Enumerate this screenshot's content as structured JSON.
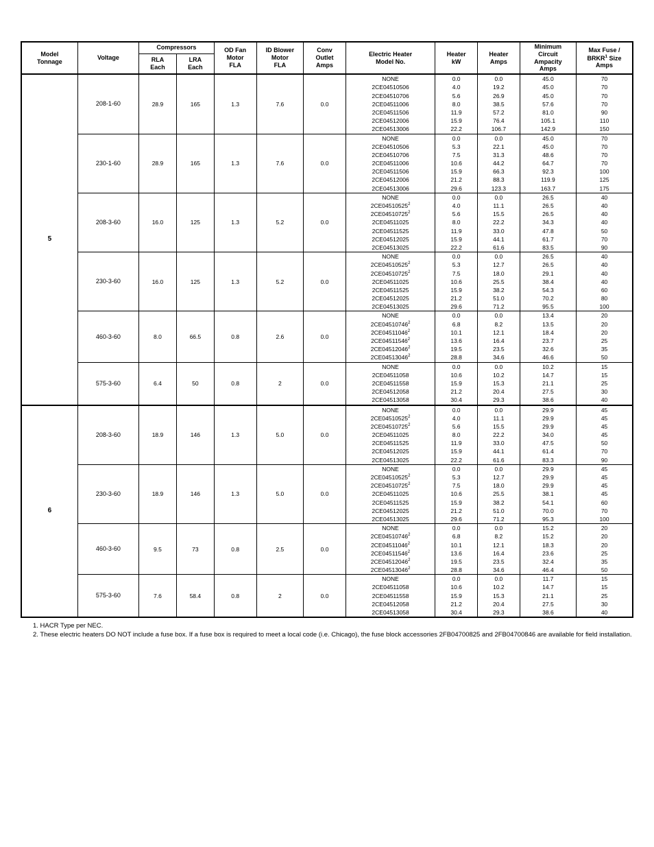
{
  "headers": {
    "tonnage": "Model Tonnage",
    "voltage": "Voltage",
    "compressors": "Compressors",
    "rla": "RLA Each",
    "lra": "LRA Each",
    "odfan": "OD Fan Motor FLA",
    "idblower": "ID Blower Motor FLA",
    "conv": "Conv Outlet Amps",
    "eh": "Electric Heater Model No.",
    "kw": "Heater kW",
    "hamps": "Heater Amps",
    "mca": "Minimum Circuit Ampacity Amps",
    "maxfuse": "Max Fuse / BRKR",
    "maxfuse_sup": "1",
    "maxfuse_suffix": " Size Amps"
  },
  "tonnages": [
    {
      "label": "5",
      "groups": [
        {
          "voltage": "208-1-60",
          "rla": "28.9",
          "lra": "165",
          "odfan": "1.3",
          "idblower": "7.6",
          "conv": "0.0",
          "rows": [
            {
              "m": "NONE",
              "ms": "",
              "kw": "0.0",
              "ha": "0.0",
              "mca": "45.0",
              "mf": "70"
            },
            {
              "m": "2CE04510506",
              "ms": "",
              "kw": "4.0",
              "ha": "19.2",
              "mca": "45.0",
              "mf": "70"
            },
            {
              "m": "2CE04510706",
              "ms": "",
              "kw": "5.6",
              "ha": "26.9",
              "mca": "45.0",
              "mf": "70"
            },
            {
              "m": "2CE04511006",
              "ms": "",
              "kw": "8.0",
              "ha": "38.5",
              "mca": "57.6",
              "mf": "70"
            },
            {
              "m": "2CE04511506",
              "ms": "",
              "kw": "11.9",
              "ha": "57.2",
              "mca": "81.0",
              "mf": "90"
            },
            {
              "m": "2CE04512006",
              "ms": "",
              "kw": "15.9",
              "ha": "76.4",
              "mca": "105.1",
              "mf": "110"
            },
            {
              "m": "2CE04513006",
              "ms": "",
              "kw": "22.2",
              "ha": "106.7",
              "mca": "142.9",
              "mf": "150"
            }
          ]
        },
        {
          "voltage": "230-1-60",
          "rla": "28.9",
          "lra": "165",
          "odfan": "1.3",
          "idblower": "7.6",
          "conv": "0.0",
          "rows": [
            {
              "m": "NONE",
              "ms": "",
              "kw": "0.0",
              "ha": "0.0",
              "mca": "45.0",
              "mf": "70"
            },
            {
              "m": "2CE04510506",
              "ms": "",
              "kw": "5.3",
              "ha": "22.1",
              "mca": "45.0",
              "mf": "70"
            },
            {
              "m": "2CE04510706",
              "ms": "",
              "kw": "7.5",
              "ha": "31.3",
              "mca": "48.6",
              "mf": "70"
            },
            {
              "m": "2CE04511006",
              "ms": "",
              "kw": "10.6",
              "ha": "44.2",
              "mca": "64.7",
              "mf": "70"
            },
            {
              "m": "2CE04511506",
              "ms": "",
              "kw": "15.9",
              "ha": "66.3",
              "mca": "92.3",
              "mf": "100"
            },
            {
              "m": "2CE04512006",
              "ms": "",
              "kw": "21.2",
              "ha": "88.3",
              "mca": "119.9",
              "mf": "125"
            },
            {
              "m": "2CE04513006",
              "ms": "",
              "kw": "29.6",
              "ha": "123.3",
              "mca": "163.7",
              "mf": "175"
            }
          ]
        },
        {
          "voltage": "208-3-60",
          "rla": "16.0",
          "lra": "125",
          "odfan": "1.3",
          "idblower": "5.2",
          "conv": "0.0",
          "rows": [
            {
              "m": "NONE",
              "ms": "",
              "kw": "0.0",
              "ha": "0.0",
              "mca": "26.5",
              "mf": "40"
            },
            {
              "m": "2CE04510525",
              "ms": "2",
              "kw": "4.0",
              "ha": "11.1",
              "mca": "26.5",
              "mf": "40"
            },
            {
              "m": "2CE04510725",
              "ms": "2",
              "kw": "5.6",
              "ha": "15.5",
              "mca": "26.5",
              "mf": "40"
            },
            {
              "m": "2CE04511025",
              "ms": "",
              "kw": "8.0",
              "ha": "22.2",
              "mca": "34.3",
              "mf": "40"
            },
            {
              "m": "2CE04511525",
              "ms": "",
              "kw": "11.9",
              "ha": "33.0",
              "mca": "47.8",
              "mf": "50"
            },
            {
              "m": "2CE04512025",
              "ms": "",
              "kw": "15.9",
              "ha": "44.1",
              "mca": "61.7",
              "mf": "70"
            },
            {
              "m": "2CE04513025",
              "ms": "",
              "kw": "22.2",
              "ha": "61.6",
              "mca": "83.5",
              "mf": "90"
            }
          ]
        },
        {
          "voltage": "230-3-60",
          "rla": "16.0",
          "lra": "125",
          "odfan": "1.3",
          "idblower": "5.2",
          "conv": "0.0",
          "rows": [
            {
              "m": "NONE",
              "ms": "",
              "kw": "0.0",
              "ha": "0.0",
              "mca": "26.5",
              "mf": "40"
            },
            {
              "m": "2CE04510525",
              "ms": "2",
              "kw": "5.3",
              "ha": "12.7",
              "mca": "26.5",
              "mf": "40"
            },
            {
              "m": "2CE04510725",
              "ms": "2",
              "kw": "7.5",
              "ha": "18.0",
              "mca": "29.1",
              "mf": "40"
            },
            {
              "m": "2CE04511025",
              "ms": "",
              "kw": "10.6",
              "ha": "25.5",
              "mca": "38.4",
              "mf": "40"
            },
            {
              "m": "2CE04511525",
              "ms": "",
              "kw": "15.9",
              "ha": "38.2",
              "mca": "54.3",
              "mf": "60"
            },
            {
              "m": "2CE04512025",
              "ms": "",
              "kw": "21.2",
              "ha": "51.0",
              "mca": "70.2",
              "mf": "80"
            },
            {
              "m": "2CE04513025",
              "ms": "",
              "kw": "29.6",
              "ha": "71.2",
              "mca": "95.5",
              "mf": "100"
            }
          ]
        },
        {
          "voltage": "460-3-60",
          "rla": "8.0",
          "lra": "66.5",
          "odfan": "0.8",
          "idblower": "2.6",
          "conv": "0.0",
          "rows": [
            {
              "m": "NONE",
              "ms": "",
              "kw": "0.0",
              "ha": "0.0",
              "mca": "13.4",
              "mf": "20"
            },
            {
              "m": "2CE04510746",
              "ms": "2",
              "kw": "6.8",
              "ha": "8.2",
              "mca": "13.5",
              "mf": "20"
            },
            {
              "m": "2CE04511046",
              "ms": "2",
              "kw": "10.1",
              "ha": "12.1",
              "mca": "18.4",
              "mf": "20"
            },
            {
              "m": "2CE04511546",
              "ms": "2",
              "kw": "13.6",
              "ha": "16.4",
              "mca": "23.7",
              "mf": "25"
            },
            {
              "m": "2CE04512046",
              "ms": "2",
              "kw": "19.5",
              "ha": "23.5",
              "mca": "32.6",
              "mf": "35"
            },
            {
              "m": "2CE04513046",
              "ms": "2",
              "kw": "28.8",
              "ha": "34.6",
              "mca": "46.6",
              "mf": "50"
            }
          ]
        },
        {
          "voltage": "575-3-60",
          "rla": "6.4",
          "lra": "50",
          "odfan": "0.8",
          "idblower": "2",
          "conv": "0.0",
          "rows": [
            {
              "m": "NONE",
              "ms": "",
              "kw": "0.0",
              "ha": "0.0",
              "mca": "10.2",
              "mf": "15"
            },
            {
              "m": "2CE04511058",
              "ms": "",
              "kw": "10.6",
              "ha": "10.2",
              "mca": "14.7",
              "mf": "15"
            },
            {
              "m": "2CE04511558",
              "ms": "",
              "kw": "15.9",
              "ha": "15.3",
              "mca": "21.1",
              "mf": "25"
            },
            {
              "m": "2CE04512058",
              "ms": "",
              "kw": "21.2",
              "ha": "20.4",
              "mca": "27.5",
              "mf": "30"
            },
            {
              "m": "2CE04513058",
              "ms": "",
              "kw": "30.4",
              "ha": "29.3",
              "mca": "38.6",
              "mf": "40"
            }
          ]
        }
      ]
    },
    {
      "label": "6",
      "groups": [
        {
          "voltage": "208-3-60",
          "rla": "18.9",
          "lra": "146",
          "odfan": "1.3",
          "idblower": "5.0",
          "conv": "0.0",
          "rows": [
            {
              "m": "NONE",
              "ms": "",
              "kw": "0.0",
              "ha": "0.0",
              "mca": "29.9",
              "mf": "45"
            },
            {
              "m": "2CE04510525",
              "ms": "2",
              "kw": "4.0",
              "ha": "11.1",
              "mca": "29.9",
              "mf": "45"
            },
            {
              "m": "2CE04510725",
              "ms": "2",
              "kw": "5.6",
              "ha": "15.5",
              "mca": "29.9",
              "mf": "45"
            },
            {
              "m": "2CE04511025",
              "ms": "",
              "kw": "8.0",
              "ha": "22.2",
              "mca": "34.0",
              "mf": "45"
            },
            {
              "m": "2CE04511525",
              "ms": "",
              "kw": "11.9",
              "ha": "33.0",
              "mca": "47.5",
              "mf": "50"
            },
            {
              "m": "2CE04512025",
              "ms": "",
              "kw": "15.9",
              "ha": "44.1",
              "mca": "61.4",
              "mf": "70"
            },
            {
              "m": "2CE04513025",
              "ms": "",
              "kw": "22.2",
              "ha": "61.6",
              "mca": "83.3",
              "mf": "90"
            }
          ]
        },
        {
          "voltage": "230-3-60",
          "rla": "18.9",
          "lra": "146",
          "odfan": "1.3",
          "idblower": "5.0",
          "conv": "0.0",
          "rows": [
            {
              "m": "NONE",
              "ms": "",
              "kw": "0.0",
              "ha": "0.0",
              "mca": "29.9",
              "mf": "45"
            },
            {
              "m": "2CE04510525",
              "ms": "2",
              "kw": "5.3",
              "ha": "12.7",
              "mca": "29.9",
              "mf": "45"
            },
            {
              "m": "2CE04510725",
              "ms": "2",
              "kw": "7.5",
              "ha": "18.0",
              "mca": "29.9",
              "mf": "45"
            },
            {
              "m": "2CE04511025",
              "ms": "",
              "kw": "10.6",
              "ha": "25.5",
              "mca": "38.1",
              "mf": "45"
            },
            {
              "m": "2CE04511525",
              "ms": "",
              "kw": "15.9",
              "ha": "38.2",
              "mca": "54.1",
              "mf": "60"
            },
            {
              "m": "2CE04512025",
              "ms": "",
              "kw": "21.2",
              "ha": "51.0",
              "mca": "70.0",
              "mf": "70"
            },
            {
              "m": "2CE04513025",
              "ms": "",
              "kw": "29.6",
              "ha": "71.2",
              "mca": "95.3",
              "mf": "100"
            }
          ]
        },
        {
          "voltage": "460-3-60",
          "rla": "9.5",
          "lra": "73",
          "odfan": "0.8",
          "idblower": "2.5",
          "conv": "0.0",
          "rows": [
            {
              "m": "NONE",
              "ms": "",
              "kw": "0.0",
              "ha": "0.0",
              "mca": "15.2",
              "mf": "20"
            },
            {
              "m": "2CE04510746",
              "ms": "2",
              "kw": "6.8",
              "ha": "8.2",
              "mca": "15.2",
              "mf": "20"
            },
            {
              "m": "2CE04511046",
              "ms": "2",
              "kw": "10.1",
              "ha": "12.1",
              "mca": "18.3",
              "mf": "20"
            },
            {
              "m": "2CE04511546",
              "ms": "2",
              "kw": "13.6",
              "ha": "16.4",
              "mca": "23.6",
              "mf": "25"
            },
            {
              "m": "2CE04512046",
              "ms": "2",
              "kw": "19.5",
              "ha": "23.5",
              "mca": "32.4",
              "mf": "35"
            },
            {
              "m": "2CE04513046",
              "ms": "2",
              "kw": "28.8",
              "ha": "34.6",
              "mca": "46.4",
              "mf": "50"
            }
          ]
        },
        {
          "voltage": "575-3-60",
          "rla": "7.6",
          "lra": "58.4",
          "odfan": "0.8",
          "idblower": "2",
          "conv": "0.0",
          "rows": [
            {
              "m": "NONE",
              "ms": "",
              "kw": "0.0",
              "ha": "0.0",
              "mca": "11.7",
              "mf": "15"
            },
            {
              "m": "2CE04511058",
              "ms": "",
              "kw": "10.6",
              "ha": "10.2",
              "mca": "14.7",
              "mf": "15"
            },
            {
              "m": "2CE04511558",
              "ms": "",
              "kw": "15.9",
              "ha": "15.3",
              "mca": "21.1",
              "mf": "25"
            },
            {
              "m": "2CE04512058",
              "ms": "",
              "kw": "21.2",
              "ha": "20.4",
              "mca": "27.5",
              "mf": "30"
            },
            {
              "m": "2CE04513058",
              "ms": "",
              "kw": "30.4",
              "ha": "29.3",
              "mca": "38.6",
              "mf": "40"
            }
          ]
        }
      ]
    }
  ],
  "footnotes": {
    "n1": "1. HACR Type per NEC.",
    "n2": "2. These electric heaters DO NOT include a fuse box. If a fuse box is required to meet a local code (i.e. Chicago), the fuse block accessories 2FB04700825 and 2FB04700846 are available for field installation."
  }
}
